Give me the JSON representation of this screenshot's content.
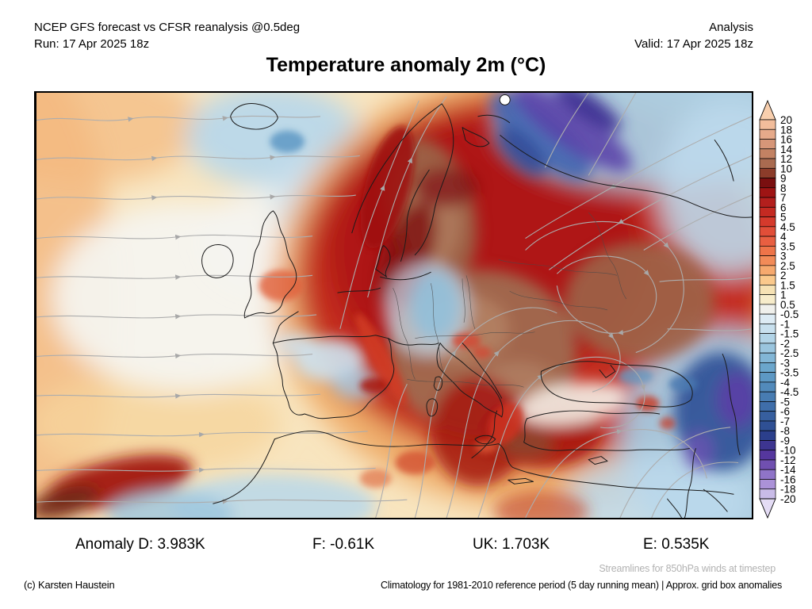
{
  "header": {
    "left_line1": "NCEP GFS forecast vs CFSR reanalysis @0.5deg",
    "left_line2": "Run: 17 Apr 2025 18z",
    "right_line1": "Analysis",
    "right_line2": "Valid: 17 Apr 2025 18z"
  },
  "title": "Temperature anomaly 2m (°C)",
  "stats": {
    "domain": "Anomaly D: 3.983K",
    "france": "F: -0.61K",
    "uk": "UK: 1.703K",
    "europe": "E: 0.535K"
  },
  "footer": {
    "streamlines_note": "Streamlines for 850hPa winds at timestep",
    "copyright": "(c) Karsten Haustein",
    "climatology_note": "Climatology for 1981-2010 reference period (5 day running mean) | Approx. grid box anomalies"
  },
  "colorbar": {
    "unit": "°C",
    "labels": [
      "20",
      "18",
      "16",
      "14",
      "12",
      "10",
      "9",
      "8",
      "7",
      "6",
      "5",
      "4.5",
      "4",
      "3.5",
      "3",
      "2.5",
      "2",
      "1.5",
      "1",
      "0.5",
      "-0.5",
      "-1",
      "-1.5",
      "-2",
      "-2.5",
      "-3",
      "-3.5",
      "-4",
      "-4.5",
      "-5",
      "-6",
      "-7",
      "-8",
      "-9",
      "-10",
      "-12",
      "-14",
      "-16",
      "-18",
      "-20"
    ],
    "segment_colors": [
      "#f2bd9b",
      "#e6aa8a",
      "#d69678",
      "#c28263",
      "#a96b50",
      "#8c3c2a",
      "#7a0f10",
      "#9e1414",
      "#b31f1d",
      "#c42a22",
      "#d53a2c",
      "#e14e38",
      "#e85f41",
      "#ee7449",
      "#f28b58",
      "#f6a96e",
      "#fac98c",
      "#f6e2b4",
      "#f7ecca",
      "#f0f0ec",
      "#ddebf4",
      "#c8e0ee",
      "#b2d4e7",
      "#9ac5de",
      "#82b6d6",
      "#6ba6cc",
      "#5d98c4",
      "#528abb",
      "#487cb2",
      "#3f6eaa",
      "#375f9f",
      "#2f5094",
      "#2b3f8c",
      "#3d3590",
      "#55379e",
      "#7050b0",
      "#8f74c8",
      "#ab92d8",
      "#c9bce8"
    ],
    "top_arrow_color": "#f8cfae",
    "bottom_arrow_color": "#e4dcf5"
  },
  "map": {
    "description": "Filled 2m temperature anomaly contours over Europe/North Atlantic with 850hPa wind streamlines",
    "colors": {
      "neutral_cream": "#f8e5bf",
      "warm_orange": "#eda55e",
      "warm_red": "#c1261a",
      "warm_dark_maroon": "#7d0d0f",
      "warm_core_brown": "#a06a50",
      "cold_light_blue": "#a9cce3",
      "cold_deep_blue": "#2f4f96",
      "cold_purple": "#5b44a8",
      "streamline_gray": "#adadad",
      "coastline_black": "#1b1b1b"
    }
  }
}
